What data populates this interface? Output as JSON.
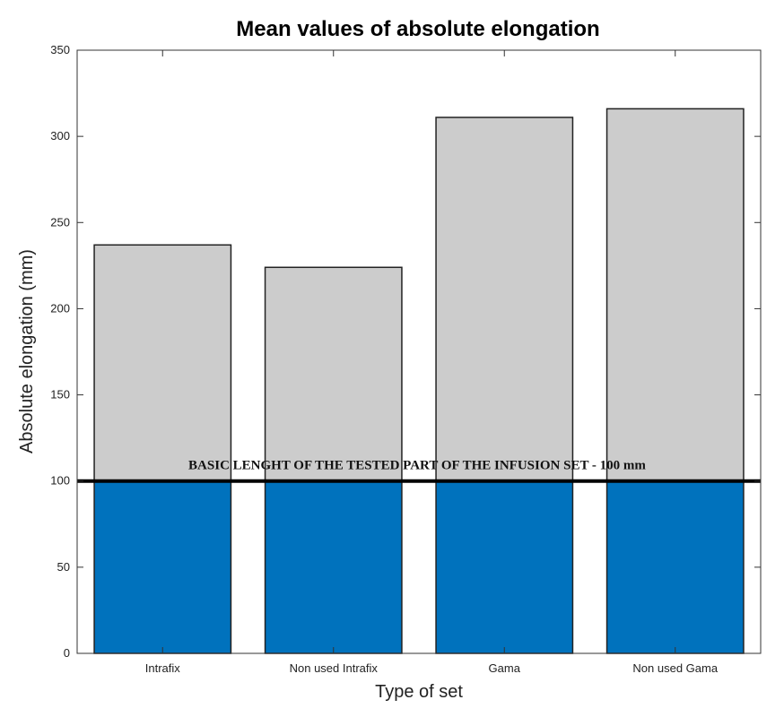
{
  "chart_data": {
    "type": "bar",
    "title": "Mean values of absolute elongation",
    "xlabel": "Type of set",
    "ylabel": "Absolute elongation (mm)",
    "categories": [
      "Intrafix",
      "Non used Intrafix",
      "Gama",
      "Non used Gama"
    ],
    "values": [
      237,
      224,
      311,
      316
    ],
    "ylim": [
      0,
      350
    ],
    "yticks": [
      0,
      50,
      100,
      150,
      200,
      250,
      300,
      350
    ],
    "reference_line": {
      "value": 100,
      "label": "BASIC LENGHT OF THE TESTED PART OF THE INFUSION SET - 100 mm"
    },
    "colors": {
      "bar_above_reference": "#cccccc",
      "bar_below_reference": "#0072bd",
      "bar_edge": "#222222",
      "reference_line": "#000000"
    },
    "grid": false,
    "legend": "none"
  }
}
